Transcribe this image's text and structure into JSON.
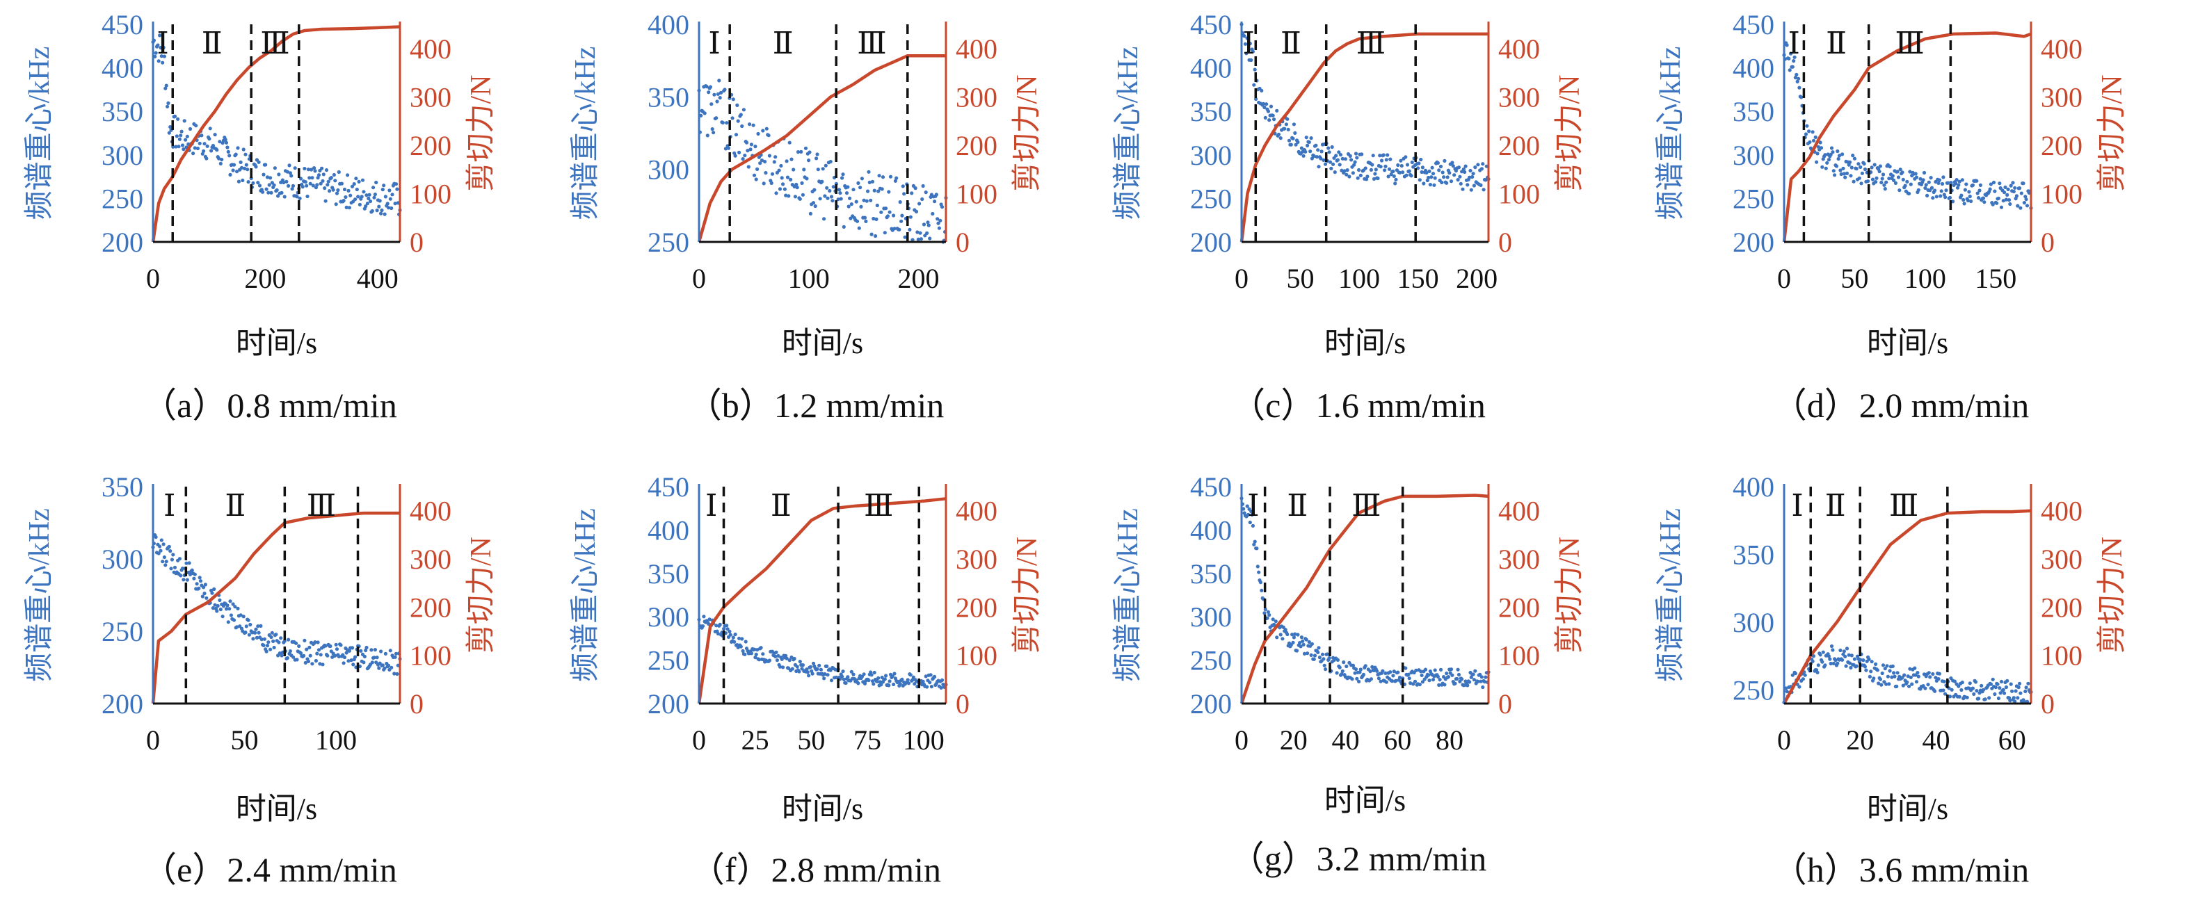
{
  "figure": {
    "blue_color": "#3d74bf",
    "red_color": "#c9482c",
    "x_axis_label": "时间/s",
    "left_axis_label": "频谱重心/kHz",
    "right_axis_label": "剪切力/N"
  },
  "chart_data": [
    {
      "type": "scatter+line",
      "caption": "（a）0.8 mm/min",
      "xlim": [
        0,
        440
      ],
      "x_ticks": [
        0,
        200,
        400
      ],
      "ylim_left": [
        200,
        450
      ],
      "left_ticks": [
        200,
        250,
        300,
        350,
        400,
        450
      ],
      "ylim_right": [
        0,
        450
      ],
      "right_ticks": [
        0,
        100,
        200,
        300,
        400
      ],
      "stage_labels": [
        "Ⅰ",
        "Ⅱ",
        "Ⅲ"
      ],
      "stage_boundaries": [
        35,
        175,
        260
      ],
      "shear_force_curve": [
        [
          0,
          0
        ],
        [
          10,
          80
        ],
        [
          20,
          110
        ],
        [
          35,
          135
        ],
        [
          50,
          170
        ],
        [
          70,
          205
        ],
        [
          90,
          240
        ],
        [
          110,
          270
        ],
        [
          130,
          305
        ],
        [
          150,
          335
        ],
        [
          170,
          360
        ],
        [
          190,
          380
        ],
        [
          210,
          395
        ],
        [
          230,
          415
        ],
        [
          250,
          430
        ],
        [
          270,
          437
        ],
        [
          300,
          440
        ],
        [
          350,
          441
        ],
        [
          400,
          443
        ],
        [
          440,
          445
        ]
      ],
      "spectral_centroid_trend": [
        [
          0,
          430
        ],
        [
          10,
          425
        ],
        [
          20,
          410
        ],
        [
          30,
          330
        ],
        [
          50,
          320
        ],
        [
          80,
          318
        ],
        [
          110,
          310
        ],
        [
          150,
          290
        ],
        [
          200,
          275
        ],
        [
          250,
          270
        ],
        [
          300,
          265
        ],
        [
          350,
          258
        ],
        [
          400,
          252
        ],
        [
          440,
          248
        ]
      ],
      "scatter_spread": 20
    },
    {
      "type": "scatter+line",
      "caption": "（b）1.2 mm/min",
      "xlim": [
        0,
        225
      ],
      "x_ticks": [
        0,
        100,
        200
      ],
      "ylim_left": [
        250,
        400
      ],
      "left_ticks": [
        250,
        300,
        350,
        400
      ],
      "ylim_right": [
        0,
        450
      ],
      "right_ticks": [
        0,
        100,
        200,
        300,
        400
      ],
      "stage_labels": [
        "Ⅰ",
        "Ⅱ",
        "Ⅲ"
      ],
      "stage_boundaries": [
        28,
        125,
        190
      ],
      "shear_force_curve": [
        [
          0,
          0
        ],
        [
          10,
          80
        ],
        [
          20,
          125
        ],
        [
          30,
          150
        ],
        [
          45,
          170
        ],
        [
          60,
          190
        ],
        [
          80,
          220
        ],
        [
          100,
          260
        ],
        [
          120,
          300
        ],
        [
          140,
          325
        ],
        [
          160,
          355
        ],
        [
          180,
          375
        ],
        [
          190,
          385
        ],
        [
          210,
          385
        ],
        [
          225,
          385
        ]
      ],
      "spectral_centroid_trend": [
        [
          0,
          345
        ],
        [
          20,
          340
        ],
        [
          40,
          320
        ],
        [
          60,
          310
        ],
        [
          80,
          300
        ],
        [
          100,
          292
        ],
        [
          120,
          285
        ],
        [
          150,
          278
        ],
        [
          180,
          272
        ],
        [
          200,
          268
        ],
        [
          225,
          266
        ]
      ],
      "scatter_spread": 22
    },
    {
      "type": "scatter+line",
      "caption": "（c）1.6 mm/min",
      "xlim": [
        0,
        210
      ],
      "x_ticks": [
        0,
        50,
        100,
        150,
        200
      ],
      "ylim_left": [
        200,
        450
      ],
      "left_ticks": [
        200,
        250,
        300,
        350,
        400,
        450
      ],
      "ylim_right": [
        0,
        450
      ],
      "right_ticks": [
        0,
        100,
        200,
        300,
        400
      ],
      "stage_labels": [
        "Ⅰ",
        "Ⅱ",
        "Ⅲ"
      ],
      "stage_boundaries": [
        12,
        72,
        148
      ],
      "shear_force_curve": [
        [
          0,
          0
        ],
        [
          5,
          100
        ],
        [
          12,
          160
        ],
        [
          20,
          200
        ],
        [
          30,
          240
        ],
        [
          40,
          270
        ],
        [
          55,
          320
        ],
        [
          70,
          370
        ],
        [
          80,
          395
        ],
        [
          90,
          410
        ],
        [
          100,
          420
        ],
        [
          120,
          425
        ],
        [
          150,
          430
        ],
        [
          180,
          430
        ],
        [
          210,
          430
        ]
      ],
      "spectral_centroid_trend": [
        [
          0,
          440
        ],
        [
          8,
          420
        ],
        [
          12,
          380
        ],
        [
          20,
          350
        ],
        [
          40,
          325
        ],
        [
          60,
          305
        ],
        [
          80,
          295
        ],
        [
          100,
          288
        ],
        [
          130,
          283
        ],
        [
          160,
          280
        ],
        [
          190,
          276
        ],
        [
          210,
          274
        ]
      ],
      "scatter_spread": 16
    },
    {
      "type": "scatter+line",
      "caption": "（d）2.0 mm/min",
      "xlim": [
        0,
        175
      ],
      "x_ticks": [
        0,
        50,
        100,
        150
      ],
      "ylim_left": [
        200,
        450
      ],
      "left_ticks": [
        200,
        250,
        300,
        350,
        400,
        450
      ],
      "ylim_right": [
        0,
        450
      ],
      "right_ticks": [
        0,
        100,
        200,
        300,
        400
      ],
      "stage_labels": [
        "Ⅰ",
        "Ⅱ",
        "Ⅲ"
      ],
      "stage_boundaries": [
        14,
        60,
        118
      ],
      "shear_force_curve": [
        [
          0,
          0
        ],
        [
          5,
          130
        ],
        [
          10,
          145
        ],
        [
          18,
          175
        ],
        [
          25,
          215
        ],
        [
          35,
          260
        ],
        [
          50,
          315
        ],
        [
          60,
          360
        ],
        [
          80,
          395
        ],
        [
          100,
          420
        ],
        [
          120,
          430
        ],
        [
          150,
          432
        ],
        [
          170,
          425
        ],
        [
          175,
          430
        ]
      ],
      "spectral_centroid_trend": [
        [
          0,
          425
        ],
        [
          8,
          400
        ],
        [
          14,
          330
        ],
        [
          25,
          300
        ],
        [
          40,
          288
        ],
        [
          60,
          280
        ],
        [
          80,
          272
        ],
        [
          100,
          265
        ],
        [
          120,
          260
        ],
        [
          150,
          255
        ],
        [
          175,
          252
        ]
      ],
      "scatter_spread": 15
    },
    {
      "type": "scatter+line",
      "caption": "（e）2.4 mm/min",
      "xlim": [
        0,
        135
      ],
      "x_ticks": [
        0,
        50,
        100
      ],
      "ylim_left": [
        200,
        350
      ],
      "left_ticks": [
        200,
        250,
        300,
        350
      ],
      "ylim_right": [
        0,
        450
      ],
      "right_ticks": [
        0,
        100,
        200,
        300,
        400
      ],
      "stage_labels": [
        "Ⅰ",
        "Ⅱ",
        "Ⅲ"
      ],
      "stage_boundaries": [
        18,
        72,
        112
      ],
      "shear_force_curve": [
        [
          0,
          0
        ],
        [
          3,
          130
        ],
        [
          10,
          150
        ],
        [
          18,
          185
        ],
        [
          30,
          210
        ],
        [
          45,
          260
        ],
        [
          55,
          310
        ],
        [
          65,
          350
        ],
        [
          72,
          375
        ],
        [
          85,
          385
        ],
        [
          100,
          390
        ],
        [
          115,
          395
        ],
        [
          135,
          395
        ]
      ],
      "spectral_centroid_trend": [
        [
          0,
          310
        ],
        [
          10,
          300
        ],
        [
          20,
          290
        ],
        [
          30,
          275
        ],
        [
          45,
          260
        ],
        [
          60,
          245
        ],
        [
          72,
          238
        ],
        [
          90,
          235
        ],
        [
          110,
          233
        ],
        [
          135,
          228
        ]
      ],
      "scatter_spread": 8
    },
    {
      "type": "scatter+line",
      "caption": "（f）2.8 mm/min",
      "xlim": [
        0,
        110
      ],
      "x_ticks": [
        0,
        25,
        50,
        75,
        100
      ],
      "ylim_left": [
        200,
        450
      ],
      "left_ticks": [
        200,
        250,
        300,
        350,
        400,
        450
      ],
      "ylim_right": [
        0,
        450
      ],
      "right_ticks": [
        0,
        100,
        200,
        300,
        400
      ],
      "stage_labels": [
        "Ⅰ",
        "Ⅱ",
        "Ⅲ"
      ],
      "stage_boundaries": [
        11,
        62,
        98
      ],
      "shear_force_curve": [
        [
          0,
          0
        ],
        [
          5,
          160
        ],
        [
          11,
          200
        ],
        [
          20,
          240
        ],
        [
          30,
          280
        ],
        [
          40,
          330
        ],
        [
          50,
          380
        ],
        [
          60,
          405
        ],
        [
          70,
          410
        ],
        [
          85,
          415
        ],
        [
          100,
          420
        ],
        [
          110,
          425
        ]
      ],
      "spectral_centroid_trend": [
        [
          0,
          295
        ],
        [
          11,
          285
        ],
        [
          20,
          265
        ],
        [
          30,
          255
        ],
        [
          45,
          242
        ],
        [
          62,
          232
        ],
        [
          80,
          228
        ],
        [
          100,
          226
        ],
        [
          110,
          225
        ]
      ],
      "scatter_spread": 8
    },
    {
      "type": "scatter+line",
      "caption": "（g）3.2 mm/min",
      "xlim": [
        0,
        95
      ],
      "x_ticks": [
        0,
        20,
        40,
        60,
        80
      ],
      "ylim_left": [
        200,
        450
      ],
      "left_ticks": [
        200,
        250,
        300,
        350,
        400,
        450
      ],
      "ylim_right": [
        0,
        450
      ],
      "right_ticks": [
        0,
        100,
        200,
        300,
        400
      ],
      "stage_labels": [
        "Ⅰ",
        "Ⅱ",
        "Ⅲ"
      ],
      "stage_boundaries": [
        9,
        34,
        62
      ],
      "shear_force_curve": [
        [
          0,
          0
        ],
        [
          5,
          80
        ],
        [
          9,
          130
        ],
        [
          15,
          170
        ],
        [
          25,
          240
        ],
        [
          34,
          320
        ],
        [
          45,
          395
        ],
        [
          55,
          420
        ],
        [
          62,
          430
        ],
        [
          75,
          430
        ],
        [
          90,
          432
        ],
        [
          95,
          430
        ]
      ],
      "spectral_centroid_trend": [
        [
          0,
          430
        ],
        [
          4,
          410
        ],
        [
          9,
          300
        ],
        [
          15,
          280
        ],
        [
          25,
          265
        ],
        [
          34,
          245
        ],
        [
          45,
          235
        ],
        [
          60,
          232
        ],
        [
          80,
          230
        ],
        [
          95,
          228
        ]
      ],
      "scatter_spread": 10
    },
    {
      "type": "scatter+line",
      "caption": "（h）3.6 mm/min",
      "xlim": [
        0,
        65
      ],
      "x_ticks": [
        0,
        20,
        40,
        60
      ],
      "ylim_left": [
        240,
        400
      ],
      "left_ticks": [
        250,
        300,
        350,
        400
      ],
      "ylim_right": [
        0,
        450
      ],
      "right_ticks": [
        0,
        100,
        200,
        300,
        400
      ],
      "stage_labels": [
        "Ⅰ",
        "Ⅱ",
        "Ⅲ"
      ],
      "stage_boundaries": [
        7,
        20,
        43
      ],
      "shear_force_curve": [
        [
          0,
          0
        ],
        [
          7,
          100
        ],
        [
          14,
          170
        ],
        [
          20,
          240
        ],
        [
          28,
          330
        ],
        [
          36,
          380
        ],
        [
          43,
          395
        ],
        [
          52,
          398
        ],
        [
          60,
          398
        ],
        [
          65,
          400
        ]
      ],
      "spectral_centroid_trend": [
        [
          0,
          248
        ],
        [
          7,
          268
        ],
        [
          12,
          275
        ],
        [
          18,
          272
        ],
        [
          25,
          262
        ],
        [
          35,
          258
        ],
        [
          45,
          252
        ],
        [
          55,
          250
        ],
        [
          65,
          248
        ]
      ],
      "scatter_spread": 8
    }
  ]
}
